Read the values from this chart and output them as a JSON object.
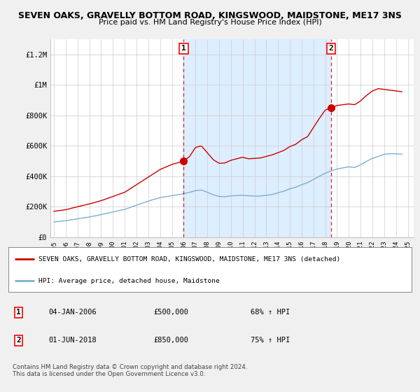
{
  "title": "SEVEN OAKS, GRAVELLY BOTTOM ROAD, KINGSWOOD, MAIDSTONE, ME17 3NS",
  "subtitle": "Price paid vs. HM Land Registry's House Price Index (HPI)",
  "red_label": "SEVEN OAKS, GRAVELLY BOTTOM ROAD, KINGSWOOD, MAIDSTONE, ME17 3NS (detached)",
  "blue_label": "HPI: Average price, detached house, Maidstone",
  "annotation1": {
    "num": "1",
    "date": "04-JAN-2006",
    "price": "£500,000",
    "pct": "68% ↑ HPI"
  },
  "annotation2": {
    "num": "2",
    "date": "01-JUN-2018",
    "price": "£850,000",
    "pct": "75% ↑ HPI"
  },
  "footer": "Contains HM Land Registry data © Crown copyright and database right 2024.\nThis data is licensed under the Open Government Licence v3.0.",
  "ylim": [
    0,
    1300000
  ],
  "yticks": [
    0,
    200000,
    400000,
    600000,
    800000,
    1000000,
    1200000
  ],
  "ytick_labels": [
    "£0",
    "£200K",
    "£400K",
    "£600K",
    "£800K",
    "£1M",
    "£1.2M"
  ],
  "marker1_x": 2006.0,
  "marker1_y": 500000,
  "marker2_x": 2018.5,
  "marker2_y": 850000,
  "xmin": 1995.0,
  "xmax": 2025.5,
  "background_color": "#f0f0f0",
  "plot_bg_color": "#ffffff",
  "shade_color": "#ddeeff",
  "grid_color": "#cccccc",
  "red_color": "#cc0000",
  "blue_color": "#7ab0d4"
}
